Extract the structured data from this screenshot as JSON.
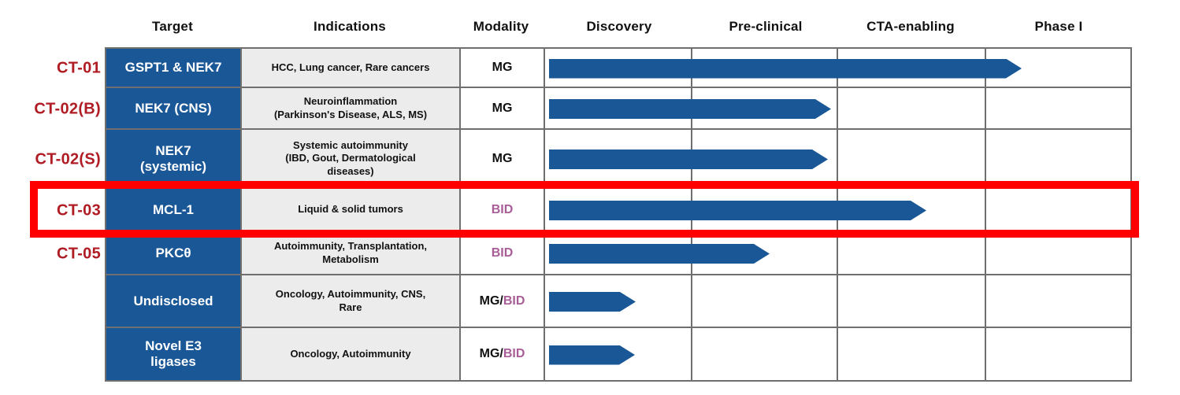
{
  "columns": [
    {
      "label": "Target"
    },
    {
      "label": "Indications"
    },
    {
      "label": "Modality"
    },
    {
      "label": "Discovery"
    },
    {
      "label": "Pre-clinical"
    },
    {
      "label": "CTA-enabling"
    },
    {
      "label": "Phase I"
    }
  ],
  "rows": [
    {
      "program": "CT-01",
      "target": "GSPT1 & NEK7",
      "indications": "HCC, Lung cancer, Rare cancers",
      "modality_mg": "MG",
      "modality_bid": "",
      "phases_completed": 3.25,
      "highlighted": false
    },
    {
      "program": "CT-02(B)",
      "target": "NEK7 (CNS)",
      "indications": "Neuroinflammation\n(Parkinson's Disease, ALS, MS)",
      "modality_mg": "MG",
      "modality_bid": "",
      "phases_completed": 1.95,
      "highlighted": false
    },
    {
      "program": "CT-02(S)",
      "target": "NEK7\n(systemic)",
      "indications": "Systemic autoimmunity\n(IBD, Gout, Dermatological\ndiseases)",
      "modality_mg": "MG",
      "modality_bid": "",
      "phases_completed": 1.93,
      "highlighted": false
    },
    {
      "program": "CT-03",
      "target": "MCL-1",
      "indications": "Liquid & solid tumors",
      "modality_mg": "",
      "modality_bid": "BID",
      "phases_completed": 2.6,
      "highlighted": true
    },
    {
      "program": "CT-05",
      "target": "PKCθ",
      "indications": "Autoimmunity, Transplantation,\nMetabolism",
      "modality_mg": "",
      "modality_bid": "BID",
      "phases_completed": 1.53,
      "highlighted": false
    },
    {
      "program": "",
      "target": "Undisclosed",
      "indications": "Oncology, Autoimmunity, CNS,\nRare",
      "modality_mg": "MG/",
      "modality_bid": "BID",
      "phases_completed": 0.62,
      "highlighted": false
    },
    {
      "program": "",
      "target": "Novel E3\nligases",
      "indications": "Oncology, Autoimmunity",
      "modality_mg": "MG/",
      "modality_bid": "BID",
      "phases_completed": 0.61,
      "highlighted": false
    }
  ],
  "colors": {
    "target_cell_blue": "#1a5796",
    "arrow_blue": "#1a5796",
    "program_label_red": "#b01c24",
    "highlight_red": "#fe0000",
    "bid_purple": "#a85d96",
    "indication_gray": "#ececec",
    "grid_line": "#6f6f6f"
  },
  "highlight": {
    "row_program": "CT-03"
  },
  "chart_data": {
    "type": "bar",
    "orientation": "horizontal",
    "title": "",
    "stage_axis": [
      "Discovery",
      "Pre-clinical",
      "CTA-enabling",
      "Phase I"
    ],
    "categories": [
      "CT-01 GSPT1 & NEK7",
      "CT-02(B) NEK7 (CNS)",
      "CT-02(S) NEK7 (systemic)",
      "CT-03 MCL-1",
      "CT-05 PKCθ",
      "Undisclosed",
      "Novel E3 ligases"
    ],
    "values": [
      3.25,
      1.95,
      1.93,
      2.6,
      1.53,
      0.62,
      0.61
    ],
    "value_meaning": "development stages completed, 0-4 scale across Discovery to Phase I",
    "xlim": [
      0,
      4
    ],
    "legend": "none",
    "grid": "on"
  }
}
